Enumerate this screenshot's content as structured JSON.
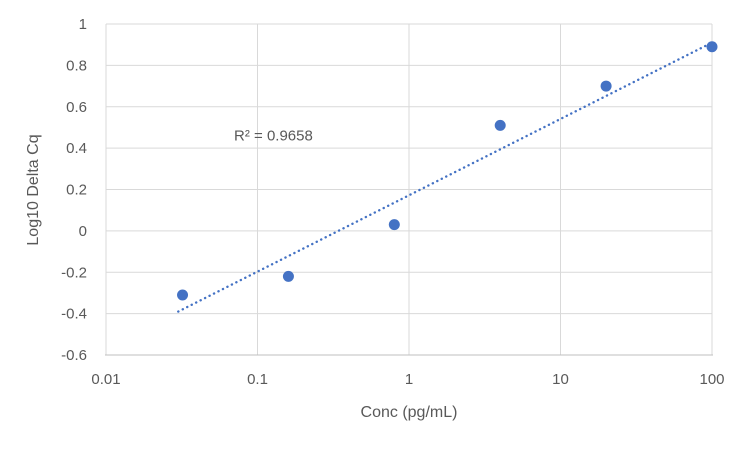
{
  "chart_data": {
    "type": "scatter",
    "title": "",
    "xlabel": "Conc (pg/mL)",
    "ylabel": "Log10 Delta Cq",
    "x_scale": "log10",
    "xlim": [
      0.01,
      100
    ],
    "ylim": [
      -0.6,
      1
    ],
    "x_tick_values": [
      0.01,
      0.1,
      1,
      10,
      100
    ],
    "x_tick_labels": [
      "0.01",
      "0.1",
      "1",
      "10",
      "100"
    ],
    "y_tick_values": [
      1,
      0.8,
      0.6,
      0.4,
      0.2,
      0,
      -0.2,
      -0.4,
      -0.6
    ],
    "y_tick_labels": [
      "1",
      "0.8",
      "0.6",
      "0.4",
      "0.2",
      "0",
      "-0.2",
      "-0.4",
      "-0.6"
    ],
    "grid": true,
    "legend": "none",
    "series": [
      {
        "marker": "circle",
        "points": [
          {
            "x": 0.032,
            "y": -0.31
          },
          {
            "x": 0.16,
            "y": -0.22
          },
          {
            "x": 0.8,
            "y": 0.03
          },
          {
            "x": 4,
            "y": 0.51
          },
          {
            "x": 20,
            "y": 0.7
          },
          {
            "x": 100,
            "y": 0.89
          }
        ]
      }
    ],
    "trendline": {
      "style": "dotted",
      "start": {
        "x": 0.03,
        "y": -0.39
      },
      "end": {
        "x": 100,
        "y": 0.91
      }
    },
    "annotation": {
      "text": "R² = 0.9658",
      "x": 0.07,
      "y": 0.46
    },
    "colors": {
      "marker": "#4472C4",
      "trendline": "#4472C4",
      "gridline": "#D9D9D9",
      "axis_line": "#BFBFBF",
      "label_text": "#595959"
    }
  }
}
